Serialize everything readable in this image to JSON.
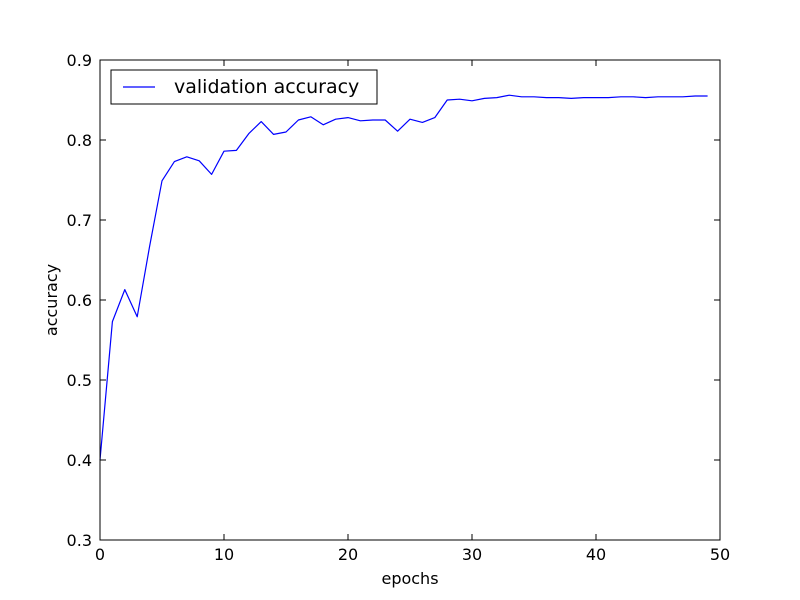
{
  "chart_data": {
    "type": "line",
    "xlabel": "epochs",
    "ylabel": "accuracy",
    "xlim": [
      0,
      50
    ],
    "ylim": [
      0.3,
      0.9
    ],
    "x_ticks": [
      0,
      10,
      20,
      30,
      40,
      50
    ],
    "y_ticks": [
      0.3,
      0.4,
      0.5,
      0.6,
      0.7,
      0.8,
      0.9
    ],
    "x_tick_labels": [
      "0",
      "10",
      "20",
      "30",
      "40",
      "50"
    ],
    "y_tick_labels": [
      "0.3",
      "0.4",
      "0.5",
      "0.6",
      "0.7",
      "0.8",
      "0.9"
    ],
    "grid": false,
    "legend_position": "top-left",
    "series": [
      {
        "name": "validation accuracy",
        "color": "#0000ff",
        "x": [
          0,
          1,
          2,
          3,
          4,
          5,
          6,
          7,
          8,
          9,
          10,
          11,
          12,
          13,
          14,
          15,
          16,
          17,
          18,
          19,
          20,
          21,
          22,
          23,
          24,
          25,
          26,
          27,
          28,
          29,
          30,
          31,
          32,
          33,
          34,
          35,
          36,
          37,
          38,
          39,
          40,
          41,
          42,
          43,
          44,
          45,
          46,
          47,
          48,
          49
        ],
        "y": [
          0.4,
          0.573,
          0.613,
          0.579,
          0.667,
          0.749,
          0.773,
          0.779,
          0.774,
          0.757,
          0.786,
          0.787,
          0.808,
          0.823,
          0.807,
          0.81,
          0.825,
          0.829,
          0.819,
          0.826,
          0.828,
          0.824,
          0.825,
          0.825,
          0.811,
          0.826,
          0.822,
          0.828,
          0.85,
          0.851,
          0.849,
          0.852,
          0.853,
          0.856,
          0.854,
          0.854,
          0.853,
          0.853,
          0.852,
          0.853,
          0.853,
          0.853,
          0.854,
          0.854,
          0.853,
          0.854,
          0.854,
          0.854,
          0.855,
          0.855
        ]
      }
    ]
  }
}
